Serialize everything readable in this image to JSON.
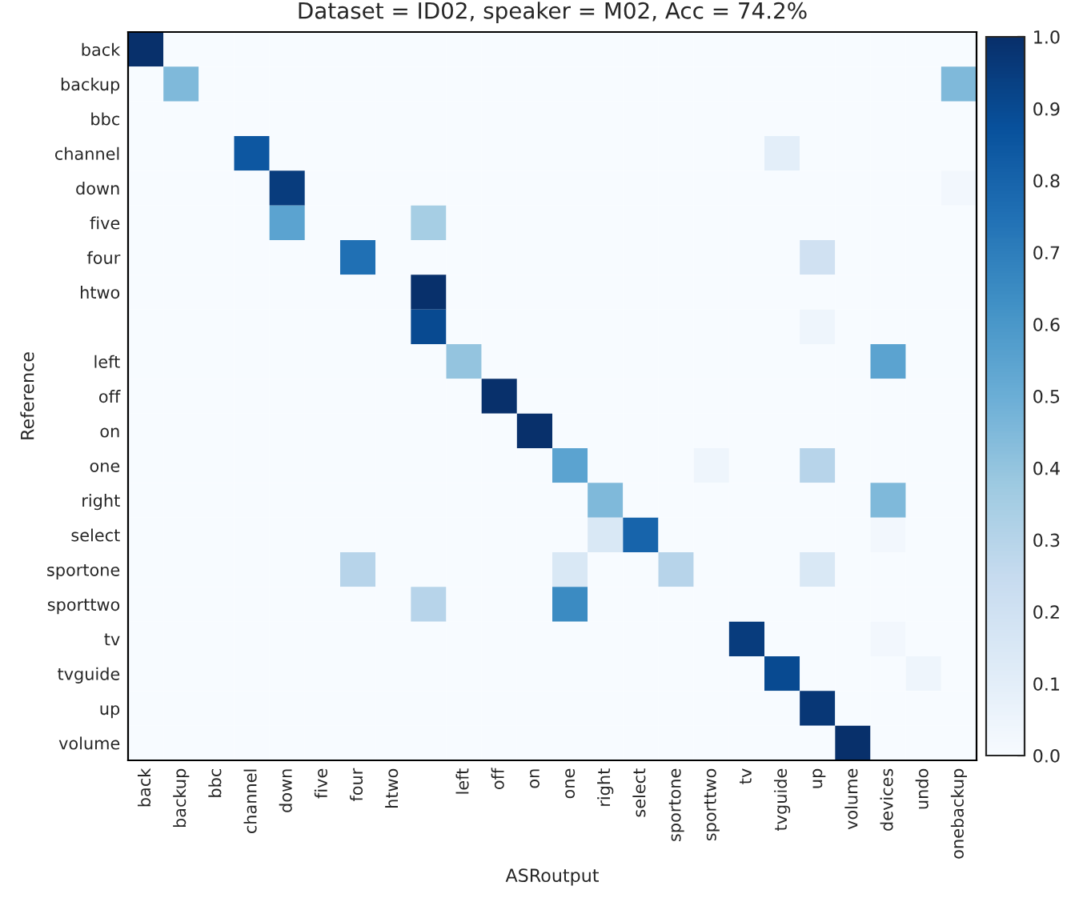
{
  "chart_data": {
    "type": "heatmap",
    "title": "Dataset = ID02, speaker = M02, Acc = 74.2%",
    "xlabel": "ASRoutput",
    "ylabel": "Reference",
    "categories": [
      "back",
      "backup",
      "bbc",
      "channel",
      "down",
      "five",
      "four",
      "htwo",
      null,
      "left",
      "off",
      "on",
      "one",
      "right",
      "select",
      "sportone",
      "sporttwo",
      "tv",
      "tvguide",
      "up",
      "volume",
      "devices",
      "undo",
      "onebackup"
    ],
    "y_categories": [
      "back",
      "backup",
      "bbc",
      "channel",
      "down",
      "five",
      "four",
      "htwo",
      null,
      "left",
      "off",
      "on",
      "one",
      "right",
      "select",
      "sportone",
      "sporttwo",
      "tv",
      "tvguide",
      "up",
      "volume"
    ],
    "cells": [
      [
        1.0,
        0,
        0,
        0,
        0,
        0,
        0,
        0,
        0,
        0,
        0,
        0,
        0,
        0,
        0,
        0,
        0,
        0,
        0,
        0,
        0,
        0,
        0,
        0
      ],
      [
        0,
        0.45,
        0,
        0,
        0,
        0,
        0,
        0,
        0,
        0,
        0,
        0,
        0,
        0,
        0,
        0,
        0,
        0,
        0,
        0,
        0,
        0,
        0,
        0.45
      ],
      [
        0,
        0,
        0,
        0,
        0,
        0,
        0,
        0,
        0,
        0,
        0,
        0,
        0,
        0,
        0,
        0,
        0,
        0,
        0,
        0,
        0,
        0,
        0,
        0
      ],
      [
        0,
        0,
        0,
        0.85,
        0,
        0,
        0,
        0,
        0,
        0,
        0,
        0,
        0,
        0,
        0,
        0,
        0,
        0,
        0.1,
        0,
        0,
        0,
        0,
        0
      ],
      [
        0,
        0,
        0,
        0,
        0.95,
        0,
        0,
        0,
        0,
        0,
        0,
        0,
        0,
        0,
        0,
        0,
        0,
        0,
        0,
        0,
        0,
        0,
        0,
        0.03
      ],
      [
        0,
        0,
        0,
        0,
        0.55,
        0,
        0,
        0,
        0.35,
        0,
        0,
        0,
        0,
        0,
        0,
        0,
        0,
        0,
        0,
        0,
        0,
        0,
        0,
        0
      ],
      [
        0,
        0,
        0,
        0,
        0,
        0,
        0.75,
        0,
        0,
        0,
        0,
        0,
        0,
        0,
        0,
        0,
        0,
        0,
        0,
        0.2,
        0,
        0,
        0,
        0
      ],
      [
        0,
        0,
        0,
        0,
        0,
        0,
        0,
        0,
        1.0,
        0,
        0,
        0,
        0,
        0,
        0,
        0,
        0,
        0,
        0,
        0,
        0,
        0,
        0,
        0
      ],
      [
        0,
        0,
        0,
        0,
        0,
        0,
        0,
        0,
        0.9,
        0,
        0,
        0,
        0,
        0,
        0,
        0,
        0,
        0,
        0,
        0.05,
        0,
        0,
        0,
        0
      ],
      [
        0,
        0,
        0,
        0,
        0,
        0,
        0,
        0,
        0,
        0.4,
        0,
        0,
        0,
        0,
        0,
        0,
        0,
        0,
        0,
        0,
        0,
        0.55,
        0,
        0
      ],
      [
        0,
        0,
        0,
        0,
        0,
        0,
        0,
        0,
        0,
        0,
        1.0,
        0,
        0,
        0,
        0,
        0,
        0,
        0,
        0,
        0,
        0,
        0,
        0,
        0
      ],
      [
        0,
        0,
        0,
        0,
        0,
        0,
        0,
        0,
        0,
        0,
        0,
        1.0,
        0,
        0,
        0,
        0,
        0,
        0,
        0,
        0,
        0,
        0,
        0,
        0
      ],
      [
        0,
        0,
        0,
        0,
        0,
        0,
        0,
        0,
        0,
        0,
        0,
        0,
        0.55,
        0,
        0,
        0,
        0.05,
        0,
        0,
        0.3,
        0,
        0,
        0,
        0
      ],
      [
        0,
        0,
        0,
        0,
        0,
        0,
        0,
        0,
        0,
        0,
        0,
        0,
        0,
        0.45,
        0,
        0,
        0,
        0,
        0,
        0,
        0,
        0.45,
        0,
        0
      ],
      [
        0,
        0,
        0,
        0,
        0,
        0,
        0,
        0,
        0,
        0,
        0,
        0,
        0,
        0.15,
        0.8,
        0,
        0,
        0,
        0,
        0,
        0,
        0.03,
        0,
        0
      ],
      [
        0,
        0,
        0,
        0,
        0,
        0,
        0.3,
        0,
        0,
        0,
        0,
        0,
        0.15,
        0,
        0,
        0.3,
        0,
        0,
        0,
        0.15,
        0,
        0,
        0,
        0
      ],
      [
        0,
        0,
        0,
        0,
        0,
        0,
        0,
        0,
        0.3,
        0,
        0,
        0,
        0.65,
        0,
        0,
        0,
        0,
        0,
        0,
        0,
        0,
        0,
        0,
        0
      ],
      [
        0,
        0,
        0,
        0,
        0,
        0,
        0,
        0,
        0,
        0,
        0,
        0,
        0,
        0,
        0,
        0,
        0,
        0.95,
        0,
        0,
        0,
        0.03,
        0,
        0
      ],
      [
        0,
        0,
        0,
        0,
        0,
        0,
        0,
        0,
        0,
        0,
        0,
        0,
        0,
        0,
        0,
        0,
        0,
        0,
        0.9,
        0,
        0,
        0,
        0.05,
        0
      ],
      [
        0,
        0,
        0,
        0,
        0,
        0,
        0,
        0,
        0,
        0,
        0,
        0,
        0,
        0,
        0,
        0,
        0,
        0,
        0,
        0.97,
        0,
        0,
        0,
        0
      ],
      [
        0,
        0,
        0,
        0,
        0,
        0,
        0,
        0,
        0,
        0,
        0,
        0,
        0,
        0,
        0,
        0,
        0,
        0,
        0,
        0,
        1.0,
        0,
        0,
        0
      ]
    ],
    "clim": [
      0.0,
      1.0
    ],
    "cticks": [
      {
        "value": 0.0,
        "label": "0.0"
      },
      {
        "value": 0.1,
        "label": "0.1"
      },
      {
        "value": 0.2,
        "label": "0.2"
      },
      {
        "value": 0.3,
        "label": "0.3"
      },
      {
        "value": 0.4,
        "label": "0.4"
      },
      {
        "value": 0.5,
        "label": "0.5"
      },
      {
        "value": 0.6,
        "label": "0.6"
      },
      {
        "value": 0.7,
        "label": "0.7"
      },
      {
        "value": 0.8,
        "label": "0.8"
      },
      {
        "value": 0.9,
        "label": "0.9"
      },
      {
        "value": 1.0,
        "label": "1.0"
      }
    ]
  }
}
